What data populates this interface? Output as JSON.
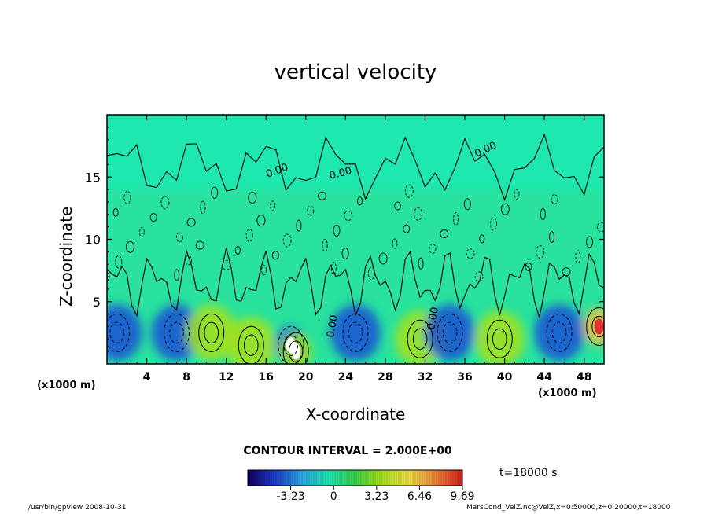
{
  "chart_data": {
    "type": "heatmap",
    "title": "vertical velocity",
    "xlabel": "X-coordinate",
    "ylabel": "Z-coordinate",
    "x_unit_label": "(x1000 m)",
    "xlim": [
      0,
      50
    ],
    "ylim": [
      0,
      20
    ],
    "x_ticks": [
      4,
      8,
      12,
      16,
      20,
      24,
      28,
      32,
      36,
      40,
      44,
      48
    ],
    "y_ticks": [
      5,
      10,
      15
    ],
    "contour_interval_text": "CONTOUR INTERVAL = 2.000E+00",
    "contour_labels": [
      "0.00",
      "0.00",
      "0.00",
      "0.00",
      "0.00"
    ],
    "colorbar": {
      "ticks": [
        "-3.23",
        "0",
        "3.23",
        "6.46",
        "9.69"
      ],
      "range": [
        -6.46,
        9.69
      ]
    },
    "time_label": "t=18000 s",
    "features": [
      {
        "x": 1.0,
        "z": 2.5,
        "w": -4.0
      },
      {
        "x": 7.0,
        "z": 2.5,
        "w": -3.5
      },
      {
        "x": 10.5,
        "z": 2.5,
        "w": 3.5
      },
      {
        "x": 14.5,
        "z": 1.5,
        "w": 3.0
      },
      {
        "x": 18.5,
        "z": 1.5,
        "w": -5.5
      },
      {
        "x": 19.0,
        "z": 1.0,
        "w": 7.5
      },
      {
        "x": 25.0,
        "z": 2.5,
        "w": -2.5
      },
      {
        "x": 31.5,
        "z": 2.0,
        "w": 4.0
      },
      {
        "x": 34.5,
        "z": 2.5,
        "w": -4.0
      },
      {
        "x": 39.5,
        "z": 2.0,
        "w": 3.0
      },
      {
        "x": 45.5,
        "z": 2.5,
        "w": -3.5
      },
      {
        "x": 49.5,
        "z": 3.0,
        "w": 10.0
      }
    ],
    "colors": {
      "background": "#1ee8b0",
      "negative": "#1b4fd6",
      "positive": "#a6e21a",
      "hot": "#e23030"
    }
  },
  "footer": {
    "left": "/usr/bin/gpview  2008-10-31",
    "right": "MarsCond_VelZ.nc@VelZ,x=0:50000,z=0:20000,t=18000"
  }
}
